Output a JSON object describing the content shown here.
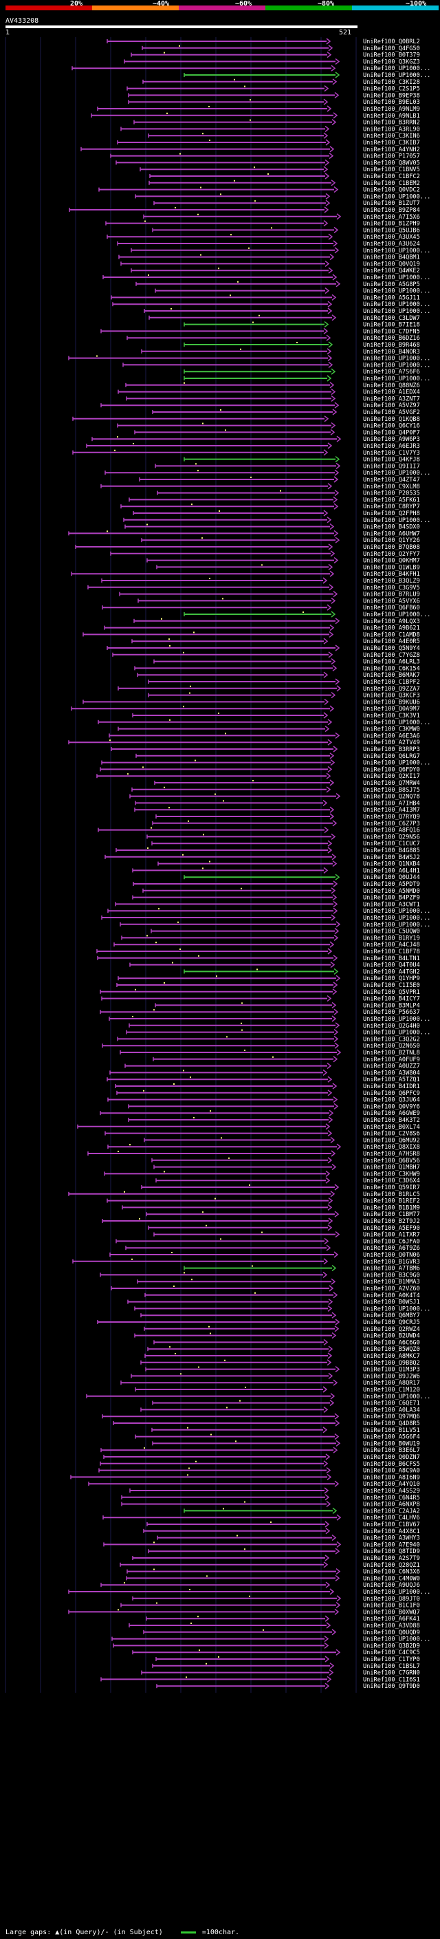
{
  "header": {
    "title": "AV433208",
    "query_start": "1",
    "query_end": "521",
    "scale_colors": [
      "#d40000",
      "#ff7f0e",
      "#c71585",
      "#00aa00",
      "#00bcd4"
    ],
    "scale_ticks": [
      "20%",
      "~40%",
      "~60%",
      "~80%",
      "~100%"
    ]
  },
  "colors": {
    "hit_line": "#b040c0",
    "hit_marker": "#ffff80",
    "gap_line": "#40c040",
    "grid_line": "#1a1a4a",
    "label_text": "#ffffff"
  },
  "hits": [
    "UniRef100_Q0BRL2",
    "UniRef100_Q4FG50",
    "UniRef100_B0T379",
    "UniRef100_Q3KGZ3",
    "UniRef100_UP1000...",
    "UniRef100_UP1000...",
    "UniRef100_C3KI28",
    "UniRef100_C2S1P5",
    "UniRef100_B9EP38",
    "UniRef100_B9EL03",
    "UniRef100_A9NLM9",
    "UniRef100_A9NLB1",
    "UniRef100_B3RRN2",
    "UniRef100_A3RL90",
    "UniRef100_C3KIN6",
    "UniRef100_C3KIB7",
    "UniRef100_A4YNH2",
    "UniRef100_P17057",
    "UniRef100_Q8WV05",
    "UniRef100_C1BNV5",
    "UniRef100_C1BFC2",
    "UniRef100_C1BEM2",
    "UniRef100_Q0VDC2",
    "UniRef100_UP1000...",
    "UniRef100_B1ZUT7",
    "UniRef100_B9ZP84",
    "UniRef100_A7I5X6",
    "UniRef100_B1ZPH9",
    "UniRef100_Q5UJB6",
    "UniRef100_A3UX45",
    "UniRef100_A3U624",
    "UniRef100_UP1000...",
    "UniRef100_B4QBM1",
    "UniRef100_Q0VQ19",
    "UniRef100_Q4WKE2",
    "UniRef100_UP1000...",
    "UniRef100_A5G8P5",
    "UniRef100_UP1000...",
    "UniRef100_A5GJ11",
    "UniRef100_UP1000...",
    "UniRef100_UP1000...",
    "UniRef100_C3LDW7",
    "UniRef100_B7IE18",
    "UniRef100_C7DFN5",
    "UniRef100_B6DZ16",
    "UniRef100_B9R468",
    "UniRef100_B4NOR3",
    "UniRef100_UP1000...",
    "UniRef100_UP1000...",
    "UniRef100_A7S6F6",
    "UniRef100_UP1000...",
    "UniRef100_Q88NZ6",
    "UniRef100_A1EDX4",
    "UniRef100_A3ZNT7",
    "UniRef100_A5VZ97",
    "UniRef100_A5VGF2",
    "UniRef100_Q1KQB8",
    "UniRef100_Q6CY16",
    "UniRef100_Q4P0F7",
    "UniRef100_A9W6P3",
    "UniRef100_A6EJR3",
    "UniRef100_C1V7Y3",
    "UniRef100_Q4KFJ8",
    "UniRef100_Q9I1I7",
    "UniRef100_UP1000...",
    "UniRef100_Q4ZT47",
    "UniRef100_C9XLM8",
    "UniRef100_P20535",
    "UniRef100_A5FK61",
    "UniRef100_C8RYP7",
    "UniRef100_Q2FPH8",
    "UniRef100_UP1000...",
    "UniRef100_B4SDX0",
    "UniRef100_A6UHW7",
    "UniRef100_Q1YY26",
    "UniRef100_B7QB08",
    "UniRef100_Q2YFY7",
    "UniRef100_Q0KHM7",
    "UniRef100_Q1WLB9",
    "UniRef100_B4KFH1",
    "UniRef100_B3QLZ9",
    "UniRef100_C3G9V5",
    "UniRef100_B7RLU9",
    "UniRef100_A5VYX6",
    "UniRef100_Q6FB60",
    "UniRef100_UP1000...",
    "UniRef100_A9LQX3",
    "UniRef100_A9B621",
    "UniRef100_C1AMD8",
    "UniRef100_A4E0R5",
    "UniRef100_Q5N9Y4",
    "UniRef100_C7YGZ8",
    "UniRef100_A6LRL3",
    "UniRef100_C6K154",
    "UniRef100_B6MAK7",
    "UniRef100_C1BPF2",
    "UniRef100_Q9ZZA7",
    "UniRef100_Q3KCF3",
    "UniRef100_B9KUU6",
    "UniRef100_Q0A9M7",
    "UniRef100_C3K3V1",
    "UniRef100_UP1000...",
    "UniRef100_C3KMW0",
    "UniRef100_A6E3A6",
    "UniRef100_A2TV49",
    "UniRef100_B3RRP3",
    "UniRef100_Q6LRG7",
    "UniRef100_UP1000...",
    "UniRef100_Q6FDY0",
    "UniRef100_Q2KI17",
    "UniRef100_Q7MRW4",
    "UniRef100_B8SJ75",
    "UniRef100_Q2NQ78",
    "UniRef100_A7IHB4",
    "UniRef100_A4I3M7",
    "UniRef100_Q7RYQ9",
    "UniRef100_C6Z7P3",
    "UniRef100_A8FQ16",
    "UniRef100_Q29N56",
    "UniRef100_C1CUC7",
    "UniRef100_B4G885",
    "UniRef100_B4WSJ2",
    "UniRef100_Q1NXB4",
    "UniRef100_A6L4H1",
    "UniRef100_Q0UJ44",
    "UniRef100_A5PDT9",
    "UniRef100_A5NMD0",
    "UniRef100_B4PZF9",
    "UniRef100_A3CWT1",
    "UniRef100_UP1000...",
    "UniRef100_UP1000...",
    "UniRef100_UP1000...",
    "UniRef100_C5UQW0",
    "UniRef100_B1RY19",
    "UniRef100_A4CJ48",
    "UniRef100_C1BF78",
    "UniRef100_B4LTN1",
    "UniRef100_Q4T0U4",
    "UniRef100_A4TGH2",
    "UniRef100_Q1YHP9",
    "UniRef100_C1I5E0",
    "UniRef100_Q5VPR1",
    "UniRef100_B4ICY7",
    "UniRef100_B3MLP4",
    "UniRef100_P56637",
    "UniRef100_UP1000...",
    "UniRef100_Q2G4H0",
    "UniRef100_UP1000...",
    "UniRef100_C3Q2G2",
    "UniRef100_Q2N6S0",
    "UniRef100_B2TNL8",
    "UniRef100_A0FUF9",
    "UniRef100_A0UZZ7",
    "UniRef100_A3W804",
    "UniRef100_A5TZQ1",
    "UniRef100_B4IDR1",
    "UniRef100_Q6PFC9",
    "UniRef100_Q3JU64",
    "UniRef100_Q0V9Y6",
    "UniRef100_A6GWE9",
    "UniRef100_B4K3T2",
    "UniRef100_B0XL74",
    "UniRef100_C2V8S6",
    "UniRef100_Q6MU92",
    "UniRef100_Q8XIX8",
    "UniRef100_A7HSR8",
    "UniRef100_Q6BV56",
    "UniRef100_Q1MBH7",
    "UniRef100_C3KHW9",
    "UniRef100_C3D6X4",
    "UniRef100_Q59IR7",
    "UniRef100_B1RLC5",
    "UniRef100_B1REF2",
    "UniRef100_B1B1M9",
    "UniRef100_C1BM77",
    "UniRef100_B2T9J2",
    "UniRef100_A5EF90",
    "UniRef100_A1TXR7",
    "UniRef100_C6JFA0",
    "UniRef100_A6T9Z6",
    "UniRef100_Q0TN06",
    "UniRef100_B1GVR3",
    "UniRef100_A7TBM6",
    "UniRef100_B3C9G0",
    "UniRef100_B1MMA3",
    "UniRef100_A2VZ60",
    "UniRef100_A0K4T4",
    "UniRef100_B0WSJ1",
    "UniRef100_UP1000...",
    "UniRef100_Q6MBY7",
    "UniRef100_Q9CRJ5",
    "UniRef100_Q2RWZ4",
    "UniRef100_B2UWD4",
    "UniRef100_A6C6G0",
    "UniRef100_B5WQZ0",
    "UniRef100_A8MKC7",
    "UniRef100_Q9BBQ2",
    "UniRef100_Q1M3P3",
    "UniRef100_B9J2W6",
    "UniRef100_A8QR17",
    "UniRef100_C1M120",
    "UniRef100_UP1000...",
    "UniRef100_C6QE71",
    "UniRef100_A0LA34",
    "UniRef100_Q97MQ6",
    "UniRef100_Q4D8R5",
    "UniRef100_B1LV51",
    "UniRef100_A5G6F4",
    "UniRef100_B0WU19",
    "UniRef100_B3E6L7",
    "UniRef100_Q0DZN7",
    "UniRef100_B6CFS5",
    "UniRef100_A8C9A0",
    "UniRef100_A8I6N9",
    "UniRef100_A4YQ10",
    "UniRef100_A4SS29",
    "UniRef100_C6N4R5",
    "UniRef100_A6NXP8",
    "UniRef100_C2AJA2",
    "UniRef100_C4LHV6",
    "UniRef100_C1BV67",
    "UniRef100_A4X8C1",
    "UniRef100_A3WHY3",
    "UniRef100_A7E940",
    "UniRef100_Q8TID9",
    "UniRef100_A2S7T9",
    "UniRef100_Q28QZ1",
    "UniRef100_C6N3X6",
    "UniRef100_C4M0W0",
    "UniRef100_A9UQJ6",
    "UniRef100_UP1000...",
    "UniRef100_Q89JT0",
    "UniRef100_B1C1F0",
    "UniRef100_B0XWQ7",
    "UniRef100_A6FK41",
    "UniRef100_A3VD88",
    "UniRef100_Q0UQD9",
    "UniRef100_UP1000...",
    "UniRef100_Q3B2D9",
    "UniRef100_C4C9C5",
    "UniRef100_C1TYP0",
    "UniRef100_C1BSL7",
    "UniRef100_C7GRN0",
    "UniRef100_C1I6S1",
    "UniRef100_Q9T9D0"
  ],
  "legend": {
    "text": "Large gaps: ▲(in Query)/- (in Subject)",
    "scale_text": "=100char."
  }
}
